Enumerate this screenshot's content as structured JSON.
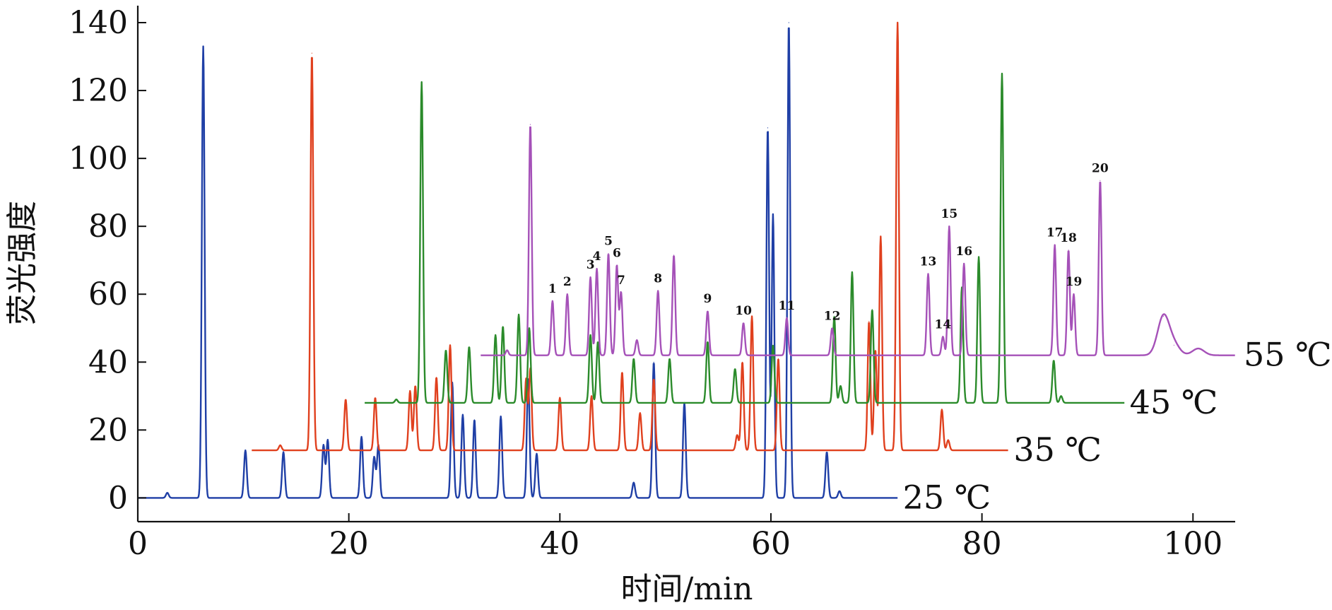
{
  "chart_data": {
    "type": "line",
    "xlabel": "时间/min",
    "ylabel": "荧光强度",
    "xlim": [
      0,
      104
    ],
    "ylim": [
      -7,
      145
    ],
    "x_ticks": [
      0,
      20,
      40,
      60,
      80,
      100
    ],
    "y_ticks": [
      0,
      20,
      40,
      60,
      80,
      100,
      120,
      140
    ],
    "grid": false,
    "series": [
      {
        "name": "25 ℃",
        "color": "#1f3fa6",
        "baseline": 0,
        "x_range": [
          0,
          72
        ],
        "label_at_x": 72.5,
        "peaks": [
          [
            2.8,
            1.5
          ],
          [
            6.2,
            133
          ],
          [
            10.2,
            14
          ],
          [
            13.8,
            13.5
          ],
          [
            17.6,
            15.5
          ],
          [
            18.0,
            17
          ],
          [
            21.2,
            18
          ],
          [
            22.4,
            12
          ],
          [
            22.8,
            15.5
          ],
          [
            29.8,
            34
          ],
          [
            30.8,
            24.5
          ],
          [
            31.9,
            23
          ],
          [
            34.4,
            24
          ],
          [
            37.0,
            35
          ],
          [
            37.8,
            13
          ],
          [
            47.0,
            4.5
          ],
          [
            48.9,
            40
          ],
          [
            51.8,
            28
          ],
          [
            59.7,
            109
          ],
          [
            60.2,
            83.5
          ],
          [
            61.7,
            140
          ],
          [
            65.3,
            13.5
          ],
          [
            66.5,
            2
          ]
        ]
      },
      {
        "name": "35 ℃",
        "color": "#e0401e",
        "baseline": 14,
        "x_range": [
          10.8,
          82.5
        ],
        "label_at_x": 83.0,
        "peaks": [
          [
            13.5,
            15.5
          ],
          [
            16.5,
            131
          ],
          [
            19.7,
            29
          ],
          [
            22.5,
            29.5
          ],
          [
            25.8,
            31.5
          ],
          [
            26.3,
            33
          ],
          [
            28.3,
            35.5
          ],
          [
            29.6,
            45
          ],
          [
            36.8,
            35
          ],
          [
            37.2,
            38
          ],
          [
            40.0,
            29.5
          ],
          [
            43.0,
            30
          ],
          [
            45.9,
            37
          ],
          [
            47.6,
            25
          ],
          [
            48.9,
            35
          ],
          [
            56.8,
            18.5
          ],
          [
            57.3,
            40
          ],
          [
            58.2,
            53.5
          ],
          [
            60.7,
            41
          ],
          [
            69.3,
            52
          ],
          [
            69.9,
            43.5
          ],
          [
            70.4,
            77
          ],
          [
            72.0,
            140
          ],
          [
            76.2,
            26
          ],
          [
            76.8,
            17
          ]
        ]
      },
      {
        "name": "45 ℃",
        "color": "#2b8b2b",
        "baseline": 28,
        "x_range": [
          21.5,
          93.5
        ],
        "label_at_x": 94.0,
        "peaks": [
          [
            24.5,
            29
          ],
          [
            26.9,
            122.5
          ],
          [
            29.2,
            43.5
          ],
          [
            31.4,
            44.5
          ],
          [
            33.9,
            48
          ],
          [
            34.6,
            50.5
          ],
          [
            36.1,
            54
          ],
          [
            37.1,
            50
          ],
          [
            42.9,
            48
          ],
          [
            43.6,
            46
          ],
          [
            47.0,
            41
          ],
          [
            50.4,
            41
          ],
          [
            54.0,
            46
          ],
          [
            56.6,
            38
          ],
          [
            60.2,
            45
          ],
          [
            66.0,
            53.5
          ],
          [
            66.6,
            33
          ],
          [
            67.7,
            66.5
          ],
          [
            69.6,
            55.5
          ],
          [
            78.1,
            62
          ],
          [
            79.7,
            71
          ],
          [
            81.9,
            125
          ],
          [
            86.8,
            40.5
          ],
          [
            87.5,
            30
          ]
        ]
      },
      {
        "name": "55 ℃",
        "color": "#a551b8",
        "baseline": 42,
        "x_range": [
          32.5,
          104
        ],
        "label_at_x": 104.8,
        "peaks": [
          [
            35.0,
            43.5
          ],
          [
            37.2,
            110
          ],
          [
            39.3,
            58
          ],
          [
            40.7,
            60
          ],
          [
            42.9,
            65
          ],
          [
            43.5,
            67.5
          ],
          [
            44.6,
            72
          ],
          [
            45.4,
            68.5
          ],
          [
            45.8,
            60.5
          ],
          [
            47.3,
            46.5
          ],
          [
            49.3,
            61
          ],
          [
            50.8,
            71.5
          ],
          [
            54.0,
            55
          ],
          [
            57.4,
            51.5
          ],
          [
            61.5,
            53
          ],
          [
            65.8,
            50
          ],
          [
            74.9,
            66
          ],
          [
            76.3,
            47.5
          ],
          [
            76.9,
            80
          ],
          [
            78.3,
            69
          ],
          [
            86.9,
            74.5
          ],
          [
            88.2,
            73
          ],
          [
            88.7,
            60
          ],
          [
            91.2,
            93.5
          ],
          [
            97.2,
            53.5
          ],
          [
            98.2,
            45
          ],
          [
            100.5,
            44
          ]
        ]
      }
    ],
    "annotations": [
      {
        "text": "1",
        "x": 39.3,
        "y": 58
      },
      {
        "text": "2",
        "x": 40.7,
        "y": 60
      },
      {
        "text": "3",
        "x": 42.9,
        "y": 65
      },
      {
        "text": "4",
        "x": 43.5,
        "y": 67.5
      },
      {
        "text": "5",
        "x": 44.6,
        "y": 72
      },
      {
        "text": "6",
        "x": 45.4,
        "y": 68.5
      },
      {
        "text": "7",
        "x": 45.8,
        "y": 60.5
      },
      {
        "text": "8",
        "x": 49.3,
        "y": 61
      },
      {
        "text": "9",
        "x": 54.0,
        "y": 55
      },
      {
        "text": "10",
        "x": 57.4,
        "y": 51.5
      },
      {
        "text": "11",
        "x": 61.5,
        "y": 53
      },
      {
        "text": "12",
        "x": 65.8,
        "y": 50
      },
      {
        "text": "13",
        "x": 74.9,
        "y": 66
      },
      {
        "text": "14",
        "x": 76.3,
        "y": 47.5
      },
      {
        "text": "15",
        "x": 76.9,
        "y": 80
      },
      {
        "text": "16",
        "x": 78.3,
        "y": 69
      },
      {
        "text": "17",
        "x": 86.9,
        "y": 74.5
      },
      {
        "text": "18",
        "x": 88.2,
        "y": 73
      },
      {
        "text": "19",
        "x": 88.7,
        "y": 60
      },
      {
        "text": "20",
        "x": 91.2,
        "y": 93.5
      }
    ]
  }
}
